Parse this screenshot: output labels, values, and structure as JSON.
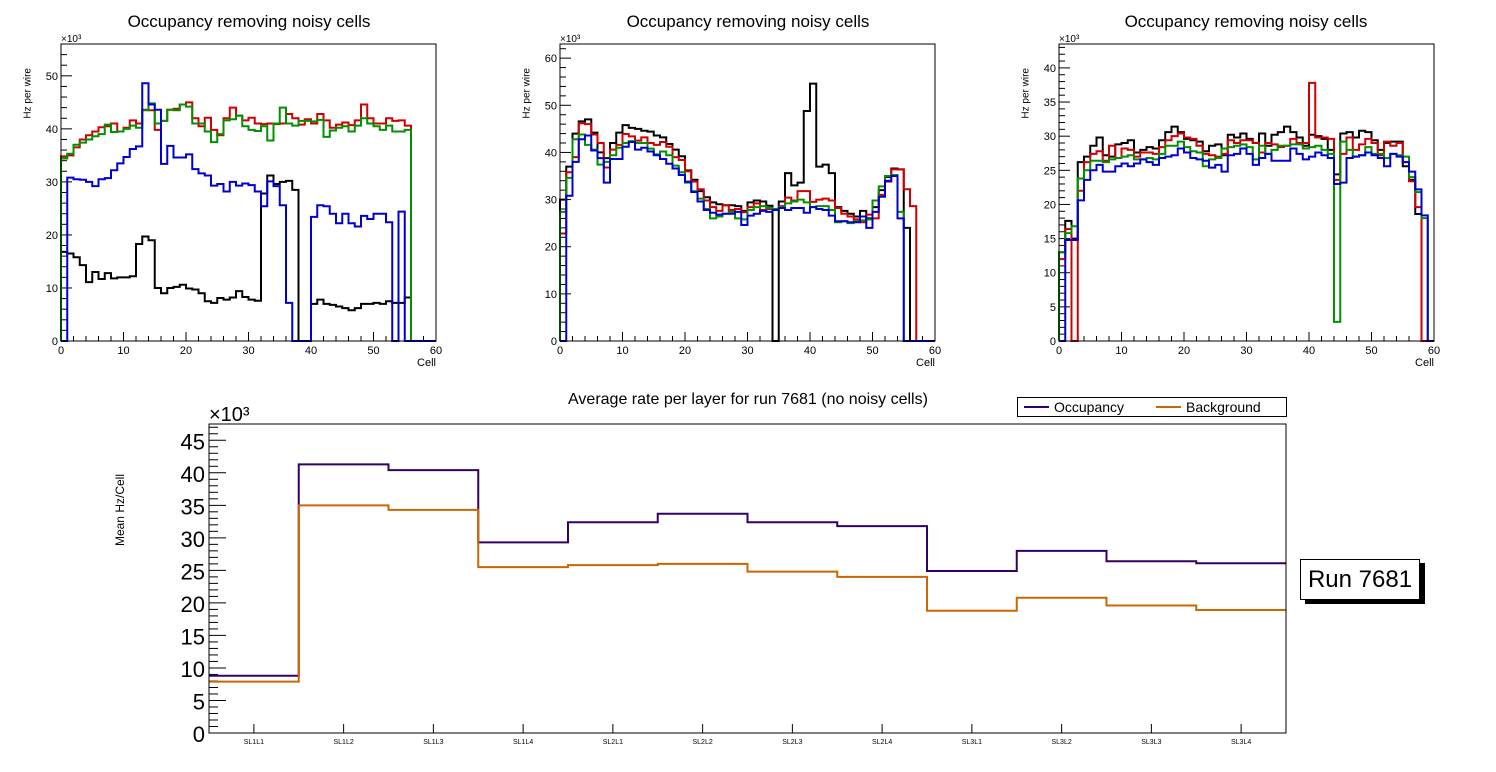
{
  "chart_data": [
    {
      "type": "line",
      "style": "step-histogram",
      "title": "Occupancy removing noisy cells",
      "xlabel": "Cell",
      "ylabel": "Hz per wire",
      "y_multiplier_label": "×10³",
      "xlim": [
        0,
        60
      ],
      "ylim": [
        0,
        56
      ],
      "xticks": [
        0,
        10,
        20,
        30,
        40,
        50,
        60
      ],
      "yticks": [
        0,
        10,
        20,
        30,
        40,
        50
      ],
      "units": "thousands",
      "series": [
        {
          "name": "black",
          "color": "#000000",
          "values": [
            16.8,
            16.5,
            15.8,
            14.3,
            11.1,
            13.0,
            11.7,
            12.8,
            11.8,
            12.0,
            12.0,
            12.2,
            18.3,
            19.7,
            19.0,
            10.0,
            9.0,
            10.0,
            10.2,
            10.6,
            9.9,
            9.7,
            9.0,
            7.5,
            7.2,
            8.1,
            7.8,
            8.2,
            9.4,
            8.3,
            7.8,
            7.6,
            27.8,
            31.2,
            29.6,
            30.0,
            30.2,
            28.5,
            0,
            0,
            7.0,
            7.8,
            7.0,
            6.8,
            6.5,
            6.2,
            5.8,
            6.2,
            7.0,
            7.0,
            7.2,
            7.0,
            7.5,
            7.2,
            7.2,
            8.2,
            0,
            0,
            0,
            0
          ]
        },
        {
          "name": "red",
          "color": "#d00000",
          "values": [
            34.8,
            35.0,
            36.5,
            38.0,
            38.8,
            39.5,
            40.3,
            40.5,
            41.0,
            39.5,
            40.2,
            41.6,
            41.0,
            43.6,
            43.5,
            39.8,
            41.5,
            43.6,
            43.8,
            44.6,
            45.0,
            42.0,
            40.5,
            42.1,
            39.8,
            38.8,
            42.0,
            44.0,
            42.5,
            41.6,
            42.1,
            41.0,
            40.9,
            41.0,
            40.9,
            41.0,
            42.8,
            42.0,
            40.8,
            41.8,
            41.0,
            42.8,
            41.6,
            40.2,
            40.8,
            41.2,
            40.7,
            41.6,
            44.6,
            42.0,
            41.0,
            41.0,
            42.0,
            41.5,
            41.6,
            40.6,
            0,
            0,
            0,
            0
          ]
        },
        {
          "name": "green",
          "color": "#009000",
          "values": [
            34.4,
            35.3,
            37.0,
            37.4,
            38.0,
            38.6,
            39.0,
            40.8,
            39.4,
            39.5,
            40.0,
            40.6,
            40.2,
            43.5,
            44.8,
            41.0,
            41.5,
            43.6,
            43.5,
            44.6,
            44.2,
            41.0,
            41.0,
            39.5,
            37.5,
            39.0,
            41.6,
            41.8,
            42.5,
            40.5,
            39.8,
            39.6,
            40.5,
            37.8,
            41.0,
            44.0,
            41.0,
            40.6,
            41.5,
            41.5,
            41.4,
            41.7,
            38.5,
            39.7,
            40.2,
            40.5,
            39.5,
            40.6,
            42.0,
            41.0,
            40.5,
            39.8,
            40.6,
            39.5,
            39.5,
            39.8,
            0,
            0,
            0,
            0
          ]
        },
        {
          "name": "blue",
          "color": "#0000d0",
          "values": [
            0,
            30.8,
            30.5,
            30.4,
            30.0,
            29.2,
            30.5,
            30.7,
            32.2,
            33.5,
            34.7,
            36.2,
            36.7,
            48.6,
            44.6,
            43.6,
            33.4,
            36.8,
            34.6,
            34.6,
            35.2,
            32.4,
            31.6,
            31.2,
            29.3,
            29.6,
            28.2,
            30.0,
            29.3,
            29.7,
            29.4,
            28.2,
            25.4,
            30.1,
            29.2,
            25.6,
            7.2,
            0,
            0,
            0,
            23.4,
            25.6,
            25.4,
            24.0,
            22.2,
            24.0,
            22.2,
            21.6,
            23.6,
            23.0,
            24.0,
            24.0,
            22.4,
            0,
            24.4,
            0,
            0,
            0,
            0,
            0
          ]
        }
      ]
    },
    {
      "type": "line",
      "style": "step-histogram",
      "title": "Occupancy removing noisy cells",
      "xlabel": "Cell",
      "ylabel": "Hz per wire",
      "y_multiplier_label": "×10³",
      "xlim": [
        0,
        60
      ],
      "ylim": [
        0,
        63
      ],
      "xticks": [
        0,
        10,
        20,
        30,
        40,
        50,
        60
      ],
      "yticks": [
        0,
        10,
        20,
        30,
        40,
        50,
        60
      ],
      "units": "thousands",
      "series": [
        {
          "name": "black",
          "color": "#000000",
          "values": [
            30.0,
            37.0,
            44.0,
            46.6,
            47.0,
            44.2,
            40.0,
            38.8,
            42.0,
            44.2,
            45.8,
            45.2,
            45.0,
            44.6,
            44.4,
            43.6,
            43.2,
            41.8,
            40.6,
            39.2,
            36.2,
            34.2,
            31.8,
            30.5,
            29.4,
            29.0,
            28.8,
            28.8,
            28.6,
            27.6,
            29.4,
            29.8,
            29.6,
            28.7,
            0,
            29.6,
            35.6,
            33.0,
            33.6,
            48.8,
            54.6,
            37.0,
            37.4,
            35.6,
            28.4,
            27.6,
            27.0,
            26.4,
            27.6,
            26.0,
            28.4,
            32.0,
            34.8,
            36.6,
            36.4,
            24.0,
            0,
            0,
            0,
            0
          ]
        },
        {
          "name": "red",
          "color": "#d00000",
          "values": [
            22.8,
            35.8,
            39.0,
            46.2,
            46.0,
            43.8,
            42.0,
            36.8,
            40.6,
            41.6,
            43.9,
            43.4,
            42.5,
            43.2,
            42.0,
            41.6,
            42.2,
            41.2,
            39.0,
            38.4,
            36.0,
            33.8,
            32.2,
            29.8,
            28.4,
            27.6,
            28.8,
            27.8,
            28.0,
            27.3,
            28.4,
            29.2,
            27.8,
            28.0,
            28.0,
            28.6,
            30.4,
            29.8,
            31.8,
            31.8,
            29.5,
            30.0,
            30.2,
            29.8,
            28.2,
            27.0,
            26.4,
            25.8,
            25.2,
            26.8,
            26.0,
            31.0,
            33.8,
            36.4,
            36.4,
            32.2,
            28.6,
            0,
            0,
            0
          ]
        },
        {
          "name": "green",
          "color": "#009000",
          "values": [
            27.4,
            34.6,
            42.8,
            43.8,
            41.6,
            40.6,
            37.4,
            38.0,
            39.4,
            41.0,
            42.0,
            42.4,
            42.0,
            42.0,
            40.8,
            39.6,
            40.2,
            39.4,
            37.2,
            35.8,
            33.6,
            31.8,
            30.2,
            28.0,
            26.0,
            26.4,
            27.0,
            27.4,
            26.0,
            25.8,
            27.8,
            28.4,
            28.6,
            28.2,
            28.0,
            28.4,
            29.2,
            29.6,
            30.0,
            29.4,
            28.4,
            28.6,
            28.6,
            27.8,
            25.2,
            25.4,
            25.0,
            25.4,
            25.6,
            25.8,
            29.8,
            32.8,
            35.0,
            35.2,
            27.4,
            0,
            0,
            0,
            0,
            0
          ]
        },
        {
          "name": "blue",
          "color": "#0000d0",
          "values": [
            0,
            30.8,
            38.0,
            42.8,
            43.6,
            40.4,
            38.8,
            33.6,
            38.6,
            38.6,
            41.2,
            42.2,
            40.6,
            41.0,
            40.2,
            39.4,
            38.6,
            37.6,
            36.6,
            35.2,
            33.8,
            31.6,
            29.6,
            27.8,
            27.2,
            26.8,
            27.0,
            27.0,
            27.4,
            24.6,
            26.6,
            27.0,
            27.6,
            27.4,
            27.8,
            28.2,
            27.8,
            28.2,
            28.2,
            27.2,
            28.4,
            28.0,
            27.8,
            26.6,
            25.4,
            25.4,
            25.2,
            25.2,
            26.4,
            24.0,
            27.4,
            30.6,
            34.0,
            35.0,
            26.0,
            0,
            0,
            0,
            0,
            0
          ]
        }
      ]
    },
    {
      "type": "line",
      "style": "step-histogram",
      "title": "Occupancy removing noisy cells",
      "xlabel": "Cell",
      "ylabel": "Hz per wire",
      "y_multiplier_label": "×10³",
      "xlim": [
        0,
        60
      ],
      "ylim": [
        0,
        43.5
      ],
      "xticks": [
        0,
        10,
        20,
        30,
        40,
        50,
        60
      ],
      "yticks": [
        0,
        5,
        10,
        15,
        20,
        25,
        30,
        35,
        40
      ],
      "units": "thousands",
      "series": [
        {
          "name": "black",
          "color": "#000000",
          "values": [
            13.0,
            17.6,
            15.0,
            26.2,
            27.0,
            28.6,
            29.8,
            27.2,
            27.0,
            28.8,
            29.0,
            29.4,
            27.6,
            28.0,
            28.4,
            28.2,
            29.4,
            30.6,
            31.4,
            30.6,
            29.6,
            29.4,
            29.2,
            27.8,
            28.6,
            28.8,
            27.2,
            30.2,
            29.8,
            30.4,
            29.6,
            29.0,
            30.4,
            28.6,
            30.2,
            30.6,
            31.4,
            30.6,
            29.8,
            28.6,
            30.2,
            30.0,
            29.6,
            28.0,
            24.4,
            30.4,
            30.6,
            29.8,
            30.8,
            30.6,
            29.4,
            28.0,
            29.0,
            29.2,
            29.2,
            25.6,
            23.6,
            18.6,
            0,
            0
          ]
        },
        {
          "name": "red",
          "color": "#d00000",
          "values": [
            12.0,
            16.4,
            0,
            22.0,
            26.2,
            27.4,
            27.8,
            26.4,
            28.6,
            26.8,
            28.2,
            28.0,
            27.0,
            27.6,
            27.6,
            27.4,
            28.4,
            29.4,
            30.0,
            30.4,
            29.8,
            29.6,
            28.6,
            27.4,
            27.2,
            27.0,
            27.4,
            29.4,
            29.0,
            29.4,
            29.4,
            29.0,
            27.6,
            29.0,
            28.8,
            28.4,
            28.6,
            29.6,
            29.0,
            29.0,
            37.8,
            29.8,
            29.8,
            29.6,
            23.6,
            27.4,
            29.8,
            28.0,
            28.8,
            29.6,
            29.0,
            27.2,
            29.2,
            28.6,
            29.0,
            26.2,
            23.4,
            19.6,
            0,
            0
          ]
        },
        {
          "name": "green",
          "color": "#009000",
          "values": [
            13.0,
            15.8,
            16.8,
            23.8,
            25.0,
            26.4,
            26.4,
            26.2,
            26.6,
            26.8,
            27.0,
            27.2,
            26.6,
            26.6,
            26.8,
            26.6,
            27.4,
            28.6,
            28.6,
            29.2,
            28.4,
            27.8,
            27.6,
            25.6,
            26.6,
            26.8,
            28.2,
            28.4,
            28.6,
            28.8,
            28.4,
            26.6,
            28.6,
            27.4,
            28.0,
            28.6,
            28.6,
            28.8,
            28.8,
            28.2,
            28.4,
            28.6,
            28.0,
            27.4,
            2.8,
            29.2,
            28.0,
            27.0,
            27.2,
            28.4,
            27.4,
            27.4,
            26.8,
            27.4,
            27.2,
            27.0,
            24.0,
            21.8,
            18.0,
            0
          ]
        },
        {
          "name": "blue",
          "color": "#0000d0",
          "values": [
            0,
            14.8,
            14.8,
            20.6,
            23.6,
            25.0,
            25.8,
            24.8,
            24.8,
            25.6,
            26.0,
            25.6,
            26.0,
            26.6,
            26.2,
            25.8,
            26.8,
            27.0,
            27.2,
            28.2,
            27.6,
            26.8,
            26.6,
            26.4,
            25.4,
            25.8,
            24.8,
            27.2,
            27.4,
            28.2,
            27.4,
            25.8,
            26.8,
            27.4,
            26.4,
            26.4,
            26.4,
            28.2,
            27.4,
            26.6,
            27.0,
            27.6,
            27.2,
            26.8,
            23.0,
            23.2,
            26.8,
            27.0,
            27.2,
            27.6,
            27.2,
            26.8,
            25.6,
            27.4,
            27.0,
            26.2,
            24.8,
            22.2,
            18.4,
            0
          ]
        }
      ]
    },
    {
      "type": "line",
      "style": "step-histogram",
      "title": "Average rate per layer for run 7681 (no noisy cells)",
      "xlabel": "",
      "ylabel": "Mean Hz/Cell",
      "y_multiplier_label": "×10³",
      "ylim": [
        0,
        47.5
      ],
      "yticks": [
        0,
        5,
        10,
        15,
        20,
        25,
        30,
        35,
        40,
        45
      ],
      "units": "thousands",
      "categories": [
        "SL1L1",
        "SL1L2",
        "SL1L3",
        "SL1L4",
        "SL2L1",
        "SL2L2",
        "SL2L3",
        "SL2L4",
        "SL3L1",
        "SL3L2",
        "SL3L3",
        "SL3L4"
      ],
      "legend_position": "top-right",
      "series": [
        {
          "name": "Occupancy",
          "color": "#330066",
          "values": [
            8.8,
            41.3,
            40.4,
            29.3,
            32.4,
            33.7,
            32.4,
            31.8,
            24.9,
            28.0,
            26.4,
            26.1
          ]
        },
        {
          "name": "Background",
          "color": "#cc6600",
          "values": [
            7.9,
            35.0,
            34.3,
            25.5,
            25.8,
            26.0,
            24.8,
            24.0,
            18.8,
            20.8,
            19.6,
            18.9
          ]
        }
      ],
      "annotation": "Run 7681"
    }
  ],
  "bottom": {
    "legend": [
      {
        "label": "Occupancy",
        "color": "#330066"
      },
      {
        "label": "Background",
        "color": "#cc6600"
      }
    ],
    "run_label": "Run 7681"
  }
}
